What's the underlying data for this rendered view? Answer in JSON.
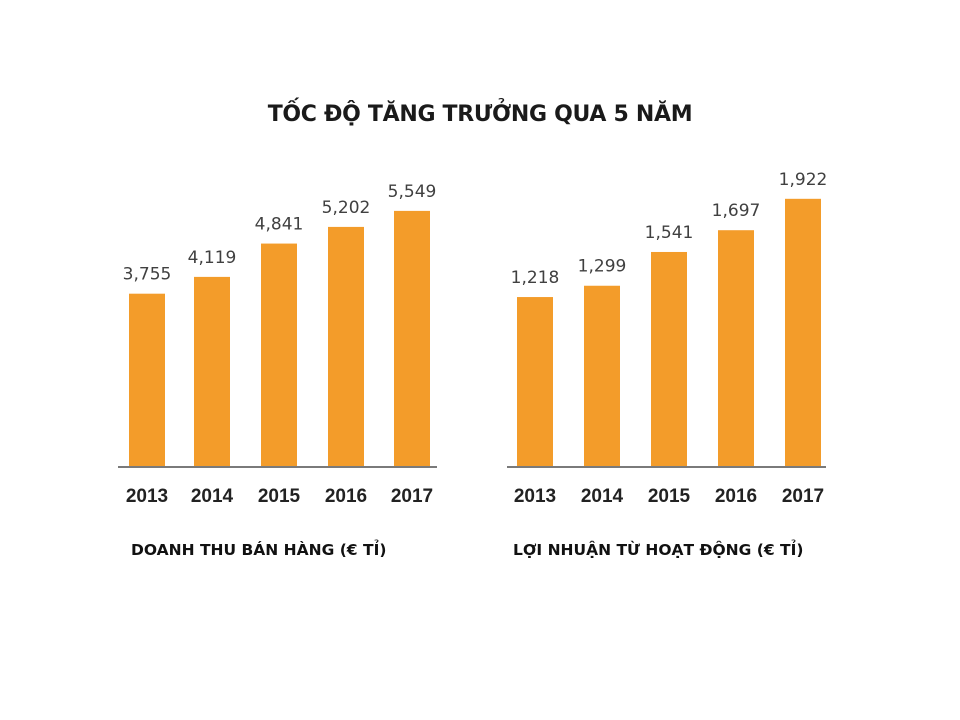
{
  "page": {
    "title": "TỐC ĐỘ TĂNG TRƯỞNG QUA 5 NĂM"
  },
  "colors": {
    "bar": "#F39C2A",
    "axis": "#7a7a7a"
  },
  "chart_data": [
    {
      "type": "bar",
      "title": "DOANH THU BÁN HÀNG (€ TỈ)",
      "categories": [
        "2013",
        "2014",
        "2015",
        "2016",
        "2017"
      ],
      "values": [
        3755,
        4119,
        4841,
        5202,
        5549
      ],
      "value_labels": [
        "3,755",
        "4,119",
        "4,841",
        "5,202",
        "5,549"
      ],
      "ylim": [
        0,
        6500
      ]
    },
    {
      "type": "bar",
      "title": "LỢI NHUẬN TỪ HOẠT ĐỘNG (€ TỈ)",
      "categories": [
        "2013",
        "2014",
        "2015",
        "2016",
        "2017"
      ],
      "values": [
        1218,
        1299,
        1541,
        1697,
        1922
      ],
      "value_labels": [
        "1,218",
        "1,299",
        "1,541",
        "1,697",
        "1,922"
      ],
      "ylim": [
        0,
        2150
      ]
    }
  ]
}
